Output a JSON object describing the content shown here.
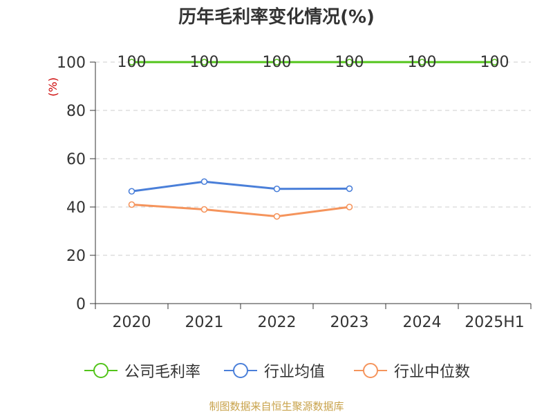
{
  "chart_data": {
    "type": "line",
    "title": "历年毛利率变化情况(%)",
    "ylabel": "(%)",
    "xlabel": "",
    "categories": [
      "2020",
      "2021",
      "2022",
      "2023",
      "2024",
      "2025H1"
    ],
    "ylim": [
      0,
      100
    ],
    "yticks": [
      0,
      20,
      40,
      60,
      80,
      100
    ],
    "grid": true,
    "legend_position": "bottom",
    "series": [
      {
        "name": "公司毛利率",
        "color": "#52c41a",
        "values": [
          100,
          100,
          100,
          100,
          100,
          100
        ],
        "data_labels": [
          "100",
          "100",
          "100",
          "100",
          "100",
          "100"
        ]
      },
      {
        "name": "行业均值",
        "color": "#4a7fd9",
        "values": [
          46.5,
          50.5,
          47.5,
          47.6,
          null,
          null
        ]
      },
      {
        "name": "行业中位数",
        "color": "#f5945c",
        "values": [
          41.0,
          39.0,
          36.1,
          40.0,
          null,
          null
        ]
      }
    ]
  },
  "source": "制图数据来自恒生聚源数据库"
}
